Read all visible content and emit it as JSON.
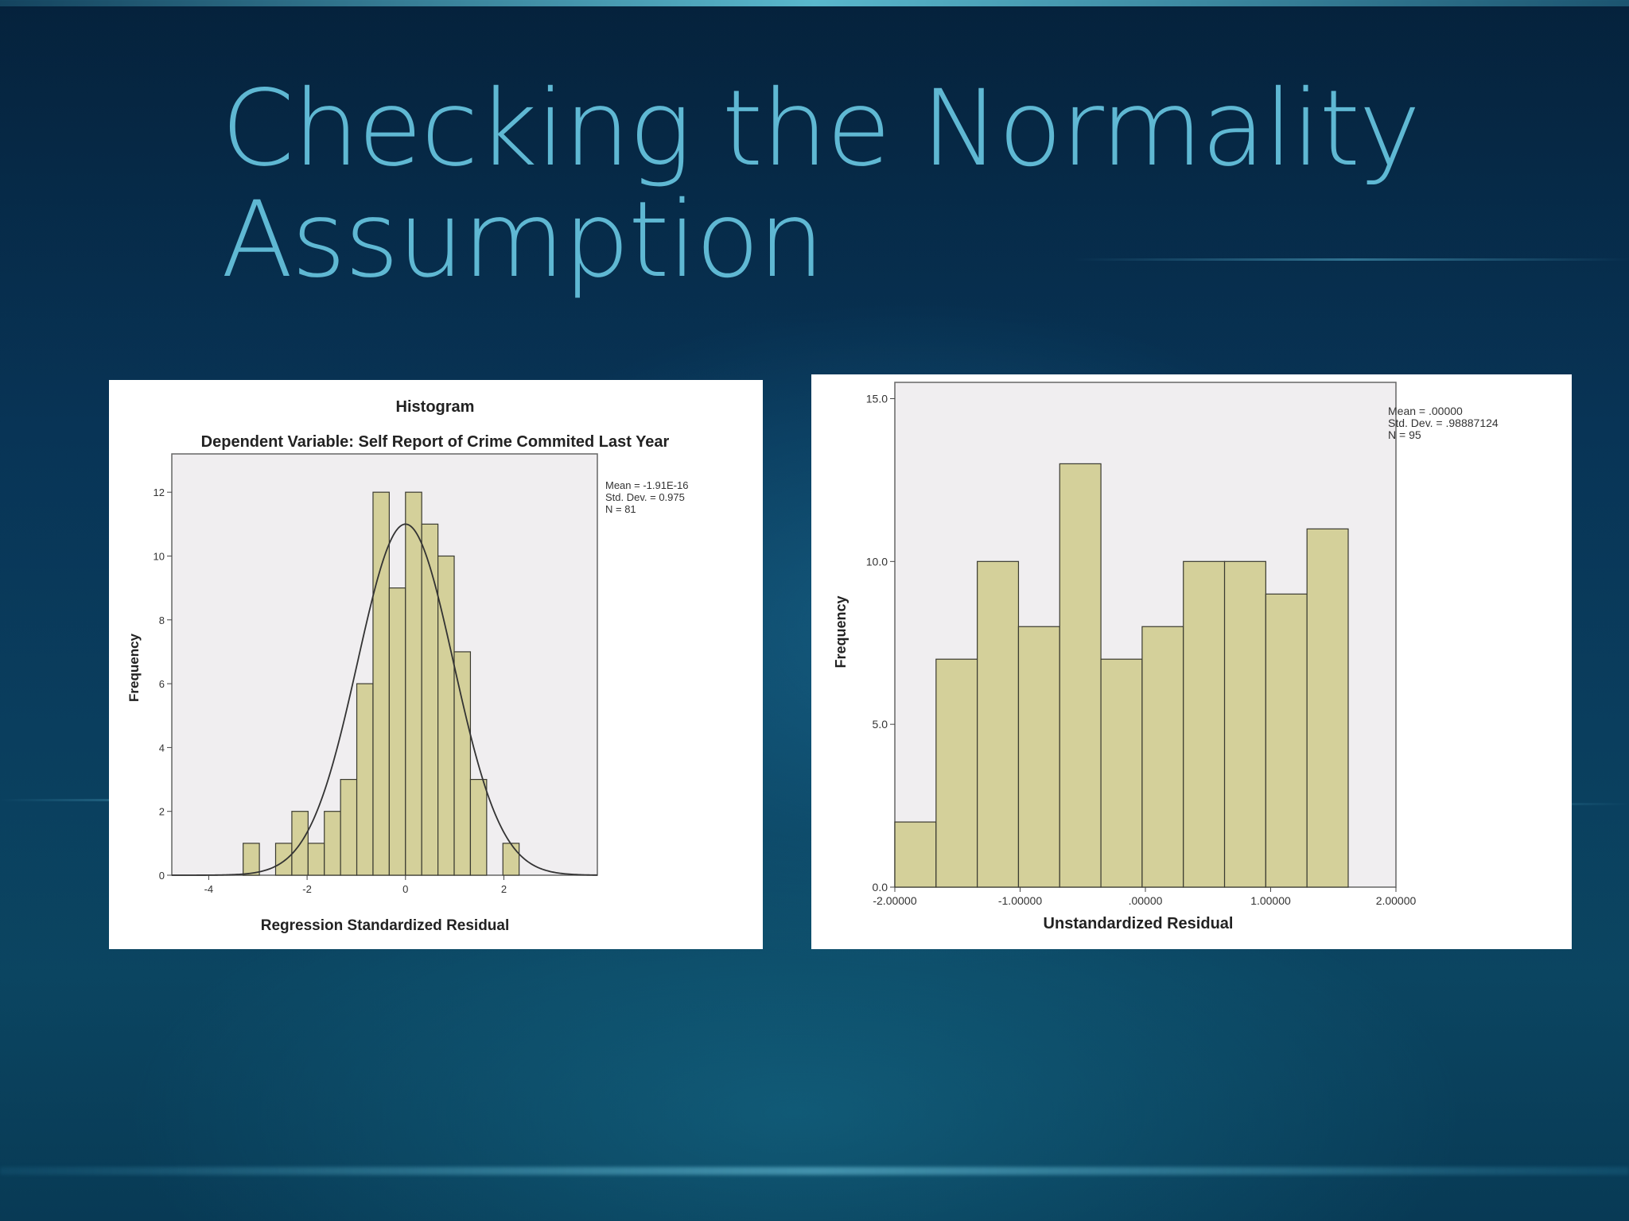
{
  "slide": {
    "title_line1": "Checking the Normality",
    "title_line2": "Assumption"
  },
  "chart_data": [
    {
      "type": "bar",
      "title": "Histogram",
      "subtitle": "Dependent Variable: Self Report of Crime Commited Last Year",
      "xlabel": "Regression Standardized Residual",
      "ylabel": "Frequency",
      "xlim": [
        -4.75,
        3.9
      ],
      "ylim": [
        0,
        13.2
      ],
      "xticks": [
        -4,
        -2,
        0,
        2
      ],
      "yticks": [
        0,
        2,
        4,
        6,
        8,
        10,
        12
      ],
      "bin_width": 0.33,
      "bins": [
        {
          "x": -3.3,
          "value": 1
        },
        {
          "x": -2.97,
          "value": 0
        },
        {
          "x": -2.64,
          "value": 1
        },
        {
          "x": -2.31,
          "value": 2
        },
        {
          "x": -1.98,
          "value": 1
        },
        {
          "x": -1.65,
          "value": 2
        },
        {
          "x": -1.32,
          "value": 3
        },
        {
          "x": -0.99,
          "value": 6
        },
        {
          "x": -0.66,
          "value": 12
        },
        {
          "x": -0.33,
          "value": 9
        },
        {
          "x": 0.0,
          "value": 12
        },
        {
          "x": 0.33,
          "value": 11
        },
        {
          "x": 0.66,
          "value": 10
        },
        {
          "x": 0.99,
          "value": 7
        },
        {
          "x": 1.32,
          "value": 3
        },
        {
          "x": 1.65,
          "value": 0
        },
        {
          "x": 1.98,
          "value": 1
        }
      ],
      "normal_curve": {
        "mean": 0,
        "peak": 11.0,
        "sd": 0.975
      },
      "stats": [
        "Mean = -1.91E-16",
        "Std. Dev. = 0.975",
        "N = 81"
      ],
      "colors": {
        "bar": "#d4d09a",
        "plot_bg": "#f0eef0"
      }
    },
    {
      "type": "bar",
      "title": "",
      "xlabel": "Unstandardized Residual",
      "ylabel": "Frequency",
      "xlim": [
        -2.0,
        2.0
      ],
      "ylim": [
        0,
        15.5
      ],
      "xticks": [
        -2,
        -1,
        0,
        1,
        2
      ],
      "xtick_labels": [
        "-2.00000",
        "-1.00000",
        ".00000",
        "1.00000",
        "2.00000"
      ],
      "yticks": [
        0,
        5,
        10,
        15
      ],
      "ytick_labels": [
        "0.0",
        "5.0",
        "10.0",
        "15.0"
      ],
      "bin_width": 0.329,
      "bins": [
        {
          "x": -2.0,
          "value": 2
        },
        {
          "x": -1.671,
          "value": 7
        },
        {
          "x": -1.342,
          "value": 10
        },
        {
          "x": -1.013,
          "value": 8
        },
        {
          "x": -0.684,
          "value": 13
        },
        {
          "x": -0.355,
          "value": 7
        },
        {
          "x": -0.026,
          "value": 8
        },
        {
          "x": 0.303,
          "value": 10
        },
        {
          "x": 0.632,
          "value": 10
        },
        {
          "x": 0.961,
          "value": 9
        },
        {
          "x": 1.29,
          "value": 11
        }
      ],
      "stats": [
        "Mean = .00000",
        "Std. Dev. = .98887124",
        "N = 95"
      ],
      "colors": {
        "bar": "#d4d09a",
        "plot_bg": "#f0eef0"
      }
    }
  ]
}
